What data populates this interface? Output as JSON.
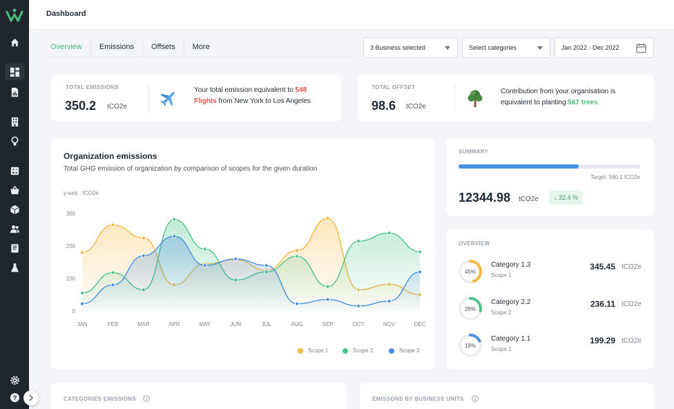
{
  "app": {
    "page_title": "Dashboard"
  },
  "sidebar": {
    "icons": [
      "home-icon",
      "dashboard-icon",
      "report-icon",
      "building-icon",
      "bulb-icon",
      "calculator-icon",
      "basket-icon",
      "package-icon",
      "users-icon",
      "book-icon",
      "flask-icon",
      "settings-icon",
      "help-icon"
    ],
    "accent": "#4aba7d",
    "background": "#1f262c"
  },
  "tabs": [
    "Overview",
    "Emissions",
    "Offsets",
    "More"
  ],
  "filters": {
    "business": "3 Business selected",
    "categories": "Select categories",
    "date_range": "Jan 2022 - Dec 2022"
  },
  "total_emissions": {
    "label": "TOTAL EMISSIONS",
    "value": "350.2",
    "unit": "tCO2e",
    "text_before": "Your total emission equivalent to ",
    "highlight_1": "548",
    "highlight_2": "Flights",
    "text_after": " from New York to Los Angeles"
  },
  "total_offset": {
    "label": "TOTAL OFFSET",
    "value": "98.6",
    "unit": "tCO2e",
    "text_1": "Contribution from your organisation is",
    "text_2": "equivalent to planting ",
    "highlight": "567 trees"
  },
  "org_chart": {
    "title": "Organization emissions",
    "subtitle": "Total GHG emission of organization by comparison of scopes for the given duration",
    "axis_note": "y-axis : tCO2e"
  },
  "chart_data": {
    "type": "area",
    "categories": [
      "JAN",
      "FEB",
      "MAR",
      "APR",
      "MAY",
      "JUN",
      "JUL",
      "AUG",
      "SEP",
      "OCT",
      "NOV",
      "DEC"
    ],
    "ylim": [
      0,
      300
    ],
    "yticks": [
      0,
      100,
      200,
      300
    ],
    "grid": false,
    "legend_position": "bottom-right",
    "series": [
      {
        "name": "Scope 1",
        "color": "#f4b942",
        "values": [
          180,
          265,
          225,
          80,
          145,
          158,
          125,
          186,
          285,
          65,
          82,
          50
        ]
      },
      {
        "name": "Scope 2",
        "color": "#4cc38a",
        "values": [
          55,
          118,
          65,
          282,
          190,
          95,
          120,
          168,
          75,
          215,
          240,
          182
        ]
      },
      {
        "name": "Scope 3",
        "color": "#4a90e2",
        "values": [
          22,
          80,
          170,
          230,
          140,
          160,
          140,
          22,
          35,
          15,
          30,
          120
        ]
      }
    ]
  },
  "summary": {
    "label": "SUMMARY",
    "progress": 0.66,
    "target": "Target: 560.1 tCO2e",
    "value": "12344.98",
    "unit": "tCO2e",
    "change": "↓ 32.4 %"
  },
  "overview": {
    "label": "OVERVIEW",
    "items": [
      {
        "name": "Category 1.3",
        "scope": "Scope 1",
        "value": "345.45",
        "unit": "tCO2e",
        "percent": 45,
        "percent_label": "45%",
        "color": "#f4b942"
      },
      {
        "name": "Category 2.2",
        "scope": "Scope 2",
        "value": "236.11",
        "unit": "tCO2e",
        "percent": 28,
        "percent_label": "28%",
        "color": "#4cc38a"
      },
      {
        "name": "Category 1.1",
        "scope": "Scope 1",
        "value": "199.29",
        "unit": "tCO2e",
        "percent": 18,
        "percent_label": "18%",
        "color": "#4a90e2"
      }
    ]
  },
  "bottom": {
    "categories_label": "CATEGORIES EMISSIONS",
    "business_label": "EMISSONS BY BUSINESS UNITS"
  }
}
